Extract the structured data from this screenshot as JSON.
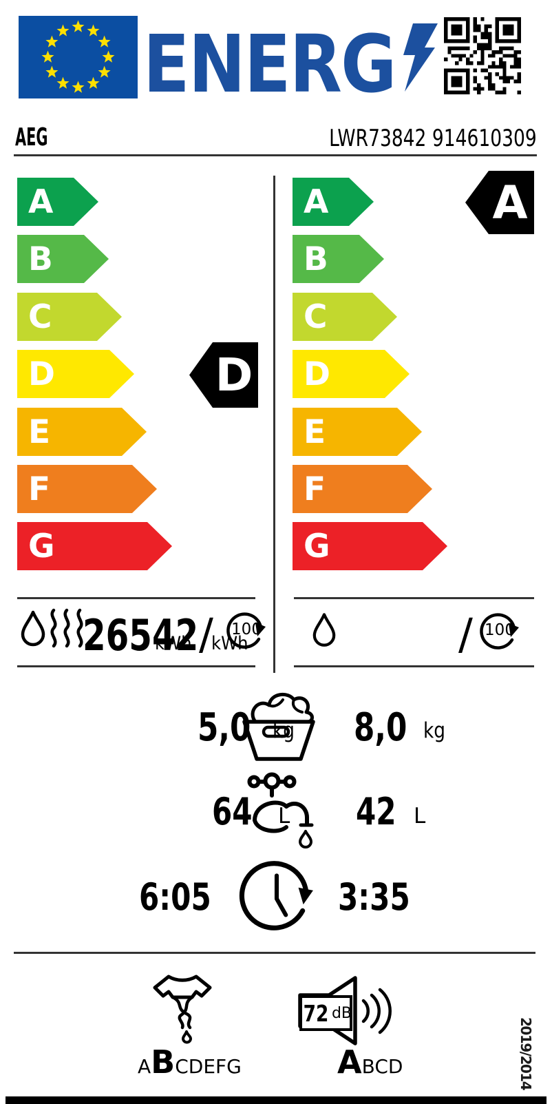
{
  "header": {
    "energy_logo_text": "ENERG",
    "brand": "AEG",
    "model": "LWR73842 914610309"
  },
  "colors": {
    "logo_blue": "#1c509f",
    "flag_blue": "#0b4ea2",
    "star_yellow": "#ffe000",
    "indicator_black": "#000000"
  },
  "efficiency_scale": {
    "classes": [
      {
        "label": "A",
        "color": "#0ca14e"
      },
      {
        "label": "B",
        "color": "#55b948"
      },
      {
        "label": "C",
        "color": "#c2d82e"
      },
      {
        "label": "D",
        "color": "#ffe800"
      },
      {
        "label": "E",
        "color": "#f6b500"
      },
      {
        "label": "F",
        "color": "#ef7e1e"
      },
      {
        "label": "G",
        "color": "#ec2127"
      }
    ],
    "left_rating": "D",
    "right_rating": "A"
  },
  "energy_consumption": {
    "slash": "/",
    "left": {
      "value_a": "265",
      "value_b": "42",
      "unit_a": "kWh",
      "unit_b": "kWh",
      "per_cycles": "100"
    },
    "right": {
      "per_cycles": "100"
    }
  },
  "capacity": {
    "left_value": "5,0",
    "left_unit": "kg",
    "right_value": "8,0",
    "right_unit": "kg"
  },
  "water": {
    "left_value": "64",
    "left_unit": "L",
    "right_value": "42",
    "right_unit": "L"
  },
  "duration": {
    "left_value": "6:05",
    "right_value": "3:35"
  },
  "spin": {
    "prefix": "A",
    "rating": "B",
    "suffix": "CDEFG"
  },
  "noise": {
    "db_value": "72",
    "db_unit": "dB",
    "rating": "A",
    "suffix": "BCD"
  },
  "regulation": "2019/2014"
}
